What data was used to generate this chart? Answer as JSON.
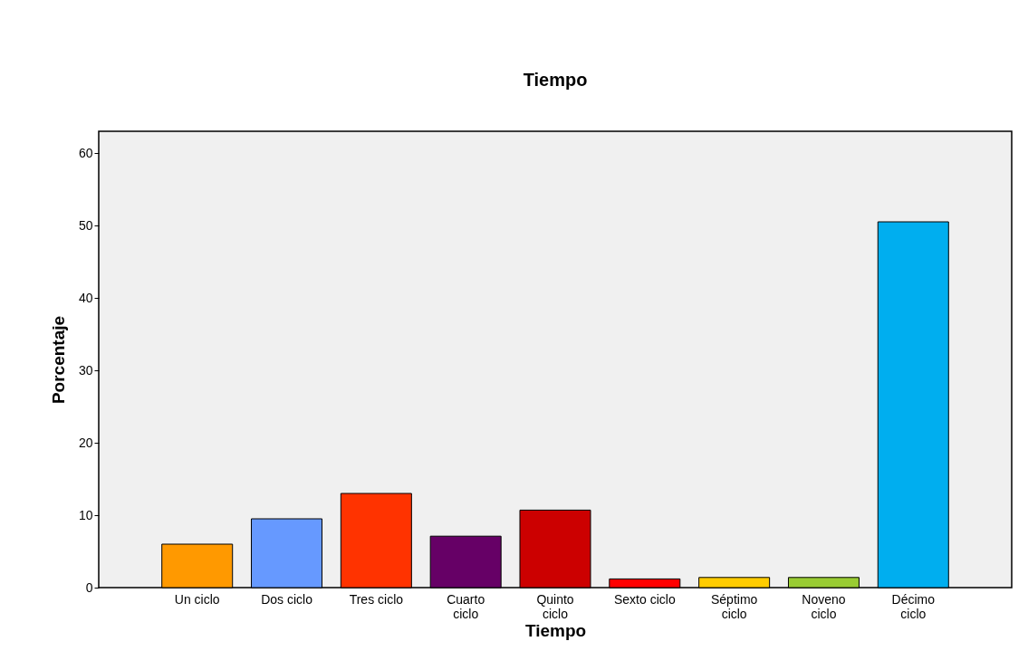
{
  "chart_data": {
    "type": "bar",
    "title": "Tiempo",
    "xlabel": "Tiempo",
    "ylabel": "Porcentaje",
    "categories": [
      "Un ciclo",
      "Dos ciclo",
      "Tres ciclo",
      "Cuarto ciclo",
      "Quinto ciclo",
      "Sexto ciclo",
      "Séptimo ciclo",
      "Noveno ciclo",
      "Décimo ciclo"
    ],
    "values": [
      6.0,
      9.5,
      13.0,
      7.1,
      10.7,
      1.2,
      1.4,
      1.4,
      50.5
    ],
    "colors": [
      "#ff9900",
      "#6699ff",
      "#ff3300",
      "#660066",
      "#cc0000",
      "#ff0000",
      "#ffcc00",
      "#99cc33",
      "#00aeef"
    ],
    "ylim": [
      0,
      63
    ],
    "yticks": [
      0,
      10,
      20,
      30,
      40,
      50,
      60
    ]
  }
}
